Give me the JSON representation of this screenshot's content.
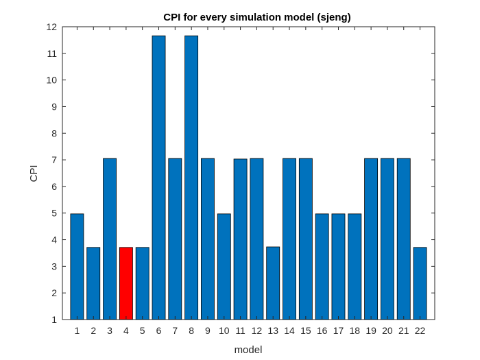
{
  "chart_data": {
    "type": "bar",
    "title": "CPI for every simulation model (sjeng)",
    "xlabel": "model",
    "ylabel": "CPI",
    "categories": [
      "1",
      "2",
      "3",
      "4",
      "5",
      "6",
      "7",
      "8",
      "9",
      "10",
      "11",
      "12",
      "13",
      "14",
      "15",
      "16",
      "17",
      "18",
      "19",
      "20",
      "21",
      "22"
    ],
    "values": [
      4.97,
      3.71,
      7.05,
      3.71,
      3.71,
      11.66,
      7.05,
      11.66,
      7.05,
      4.97,
      7.03,
      7.05,
      3.73,
      7.05,
      7.05,
      4.97,
      4.97,
      4.97,
      7.05,
      7.05,
      7.05,
      3.71
    ],
    "ylim": [
      1,
      12
    ],
    "yticks": [
      "1",
      "2",
      "3",
      "4",
      "5",
      "6",
      "7",
      "8",
      "9",
      "10",
      "11",
      "12"
    ],
    "grid": false,
    "bar_color": "#0072BD",
    "highlight_color": "#FF0000",
    "highlight_index": 3
  }
}
